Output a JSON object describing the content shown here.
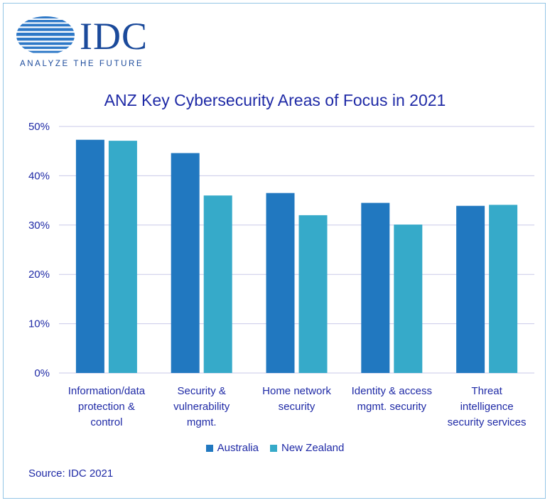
{
  "brand": {
    "logo_text": "IDC",
    "tagline": "ANALYZE THE FUTURE"
  },
  "colors": {
    "australia": "#2178c0",
    "new_zealand": "#36aac9",
    "text": "#1f2aa6",
    "grid": "#c9c9e8"
  },
  "chart_data": {
    "type": "bar",
    "title": "ANZ Key Cybersecurity Areas of Focus in 2021",
    "categories": [
      [
        "Information/data",
        "protection &",
        "control"
      ],
      [
        "Security &",
        "vulnerability",
        "mgmt."
      ],
      [
        "Home network",
        "security"
      ],
      [
        "Identity & access",
        "mgmt. security"
      ],
      [
        "Threat",
        "intelligence",
        "security services"
      ]
    ],
    "series": [
      {
        "name": "Australia",
        "values": [
          47.3,
          44.6,
          36.5,
          34.5,
          33.9
        ]
      },
      {
        "name": "New Zealand",
        "values": [
          47.1,
          36.0,
          32.0,
          30.1,
          34.1
        ]
      }
    ],
    "ylim": [
      0,
      50
    ],
    "yticks": [
      "0%",
      "10%",
      "20%",
      "30%",
      "40%",
      "50%"
    ],
    "ytick_values": [
      0,
      10,
      20,
      30,
      40,
      50
    ],
    "grid": true,
    "legend": "bottom"
  },
  "source": "Source: IDC 2021"
}
